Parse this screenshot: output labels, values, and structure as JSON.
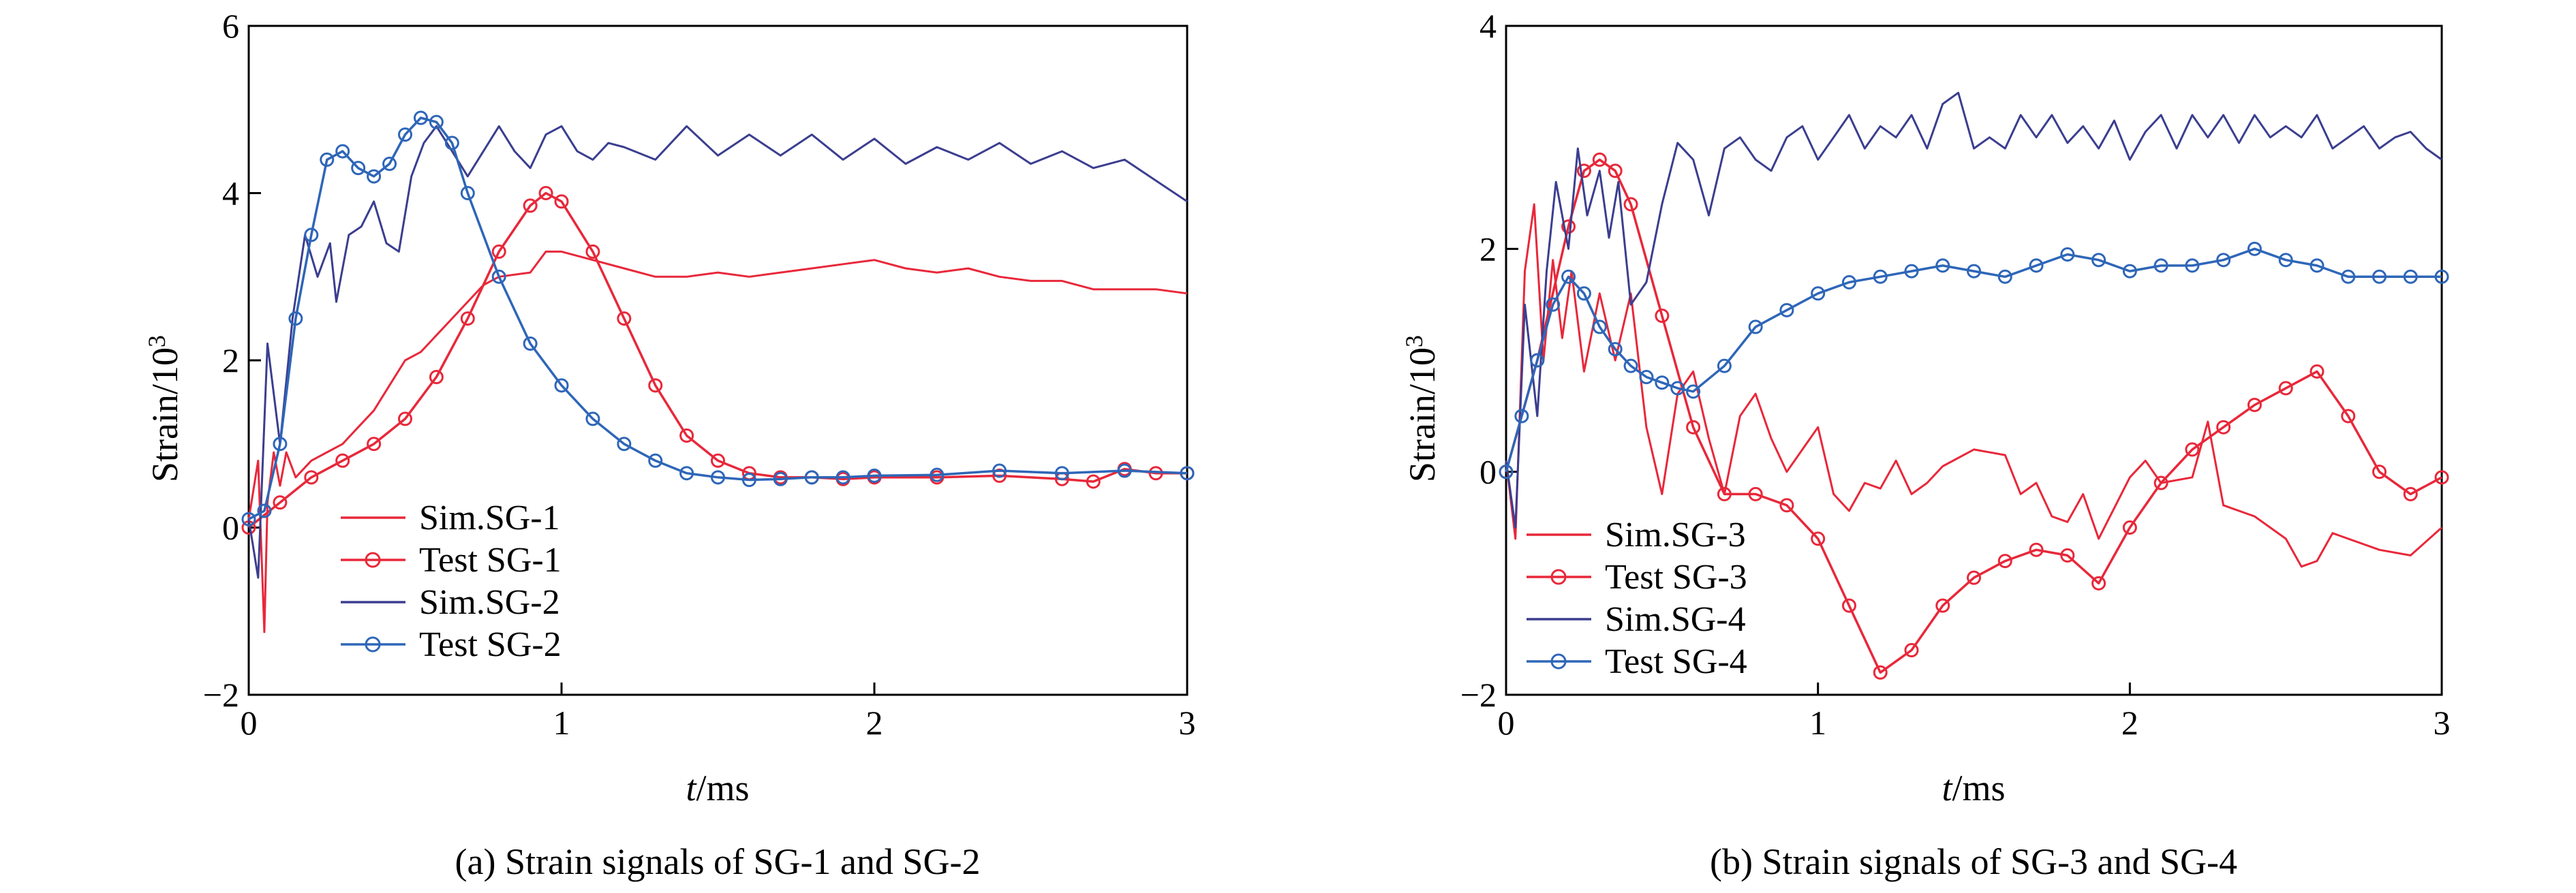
{
  "chart_data": [
    {
      "type": "line",
      "caption": "(a) Strain signals of SG-1 and SG-2",
      "xlabel_var": "t",
      "xlabel_unit": "/ms",
      "ylabel": "Strain/10",
      "ylabel_sup": "3",
      "xlim": [
        0,
        3
      ],
      "ylim": [
        -2,
        6
      ],
      "xticks": [
        "0",
        "1",
        "2",
        "3"
      ],
      "yticks": [
        "−2",
        "0",
        "2",
        "4",
        "6"
      ],
      "xtick_values": [
        0,
        1,
        2,
        3
      ],
      "ytick_values": [
        -2,
        0,
        2,
        4,
        6
      ],
      "legend_position": "lower-left",
      "series": [
        {
          "name": "Sim.SG-1",
          "color": "#e8283a",
          "marker": "none",
          "x": [
            0,
            0.03,
            0.05,
            0.06,
            0.08,
            0.1,
            0.12,
            0.15,
            0.2,
            0.25,
            0.3,
            0.35,
            0.4,
            0.45,
            0.5,
            0.55,
            0.6,
            0.65,
            0.7,
            0.75,
            0.8,
            0.9,
            0.95,
            1.0,
            1.1,
            1.2,
            1.3,
            1.4,
            1.5,
            1.6,
            1.7,
            1.8,
            1.9,
            2.0,
            2.1,
            2.2,
            2.3,
            2.4,
            2.5,
            2.6,
            2.7,
            2.8,
            2.9,
            3.0
          ],
          "y": [
            0.1,
            0.8,
            -1.25,
            0.3,
            0.9,
            0.5,
            0.9,
            0.6,
            0.8,
            0.9,
            1.0,
            1.2,
            1.4,
            1.7,
            2.0,
            2.1,
            2.3,
            2.5,
            2.7,
            2.9,
            3.0,
            3.05,
            3.3,
            3.3,
            3.2,
            3.1,
            3.0,
            3.0,
            3.05,
            3.0,
            3.05,
            3.1,
            3.15,
            3.2,
            3.1,
            3.05,
            3.1,
            3.0,
            2.95,
            2.95,
            2.85,
            2.85,
            2.85,
            2.8
          ]
        },
        {
          "name": "Test SG-1",
          "color": "#e8283a",
          "marker": "circle",
          "x": [
            0,
            0.1,
            0.2,
            0.3,
            0.4,
            0.5,
            0.6,
            0.7,
            0.8,
            0.9,
            0.95,
            1.0,
            1.1,
            1.2,
            1.3,
            1.4,
            1.5,
            1.6,
            1.7,
            1.8,
            1.9,
            2.0,
            2.2,
            2.4,
            2.6,
            2.7,
            2.8,
            2.9,
            3.0
          ],
          "y": [
            0.0,
            0.3,
            0.6,
            0.8,
            1.0,
            1.3,
            1.8,
            2.5,
            3.3,
            3.85,
            4.0,
            3.9,
            3.3,
            2.5,
            1.7,
            1.1,
            0.8,
            0.65,
            0.6,
            0.6,
            0.58,
            0.6,
            0.6,
            0.62,
            0.58,
            0.55,
            0.7,
            0.65,
            0.65
          ]
        },
        {
          "name": "Sim.SG-2",
          "color": "#3b3e8f",
          "marker": "none",
          "x": [
            0,
            0.03,
            0.06,
            0.1,
            0.14,
            0.18,
            0.22,
            0.26,
            0.28,
            0.32,
            0.36,
            0.4,
            0.44,
            0.48,
            0.52,
            0.56,
            0.6,
            0.65,
            0.7,
            0.75,
            0.8,
            0.85,
            0.9,
            0.95,
            1.0,
            1.05,
            1.1,
            1.15,
            1.2,
            1.3,
            1.4,
            1.5,
            1.6,
            1.7,
            1.8,
            1.9,
            2.0,
            2.1,
            2.2,
            2.3,
            2.4,
            2.5,
            2.6,
            2.7,
            2.8,
            2.9,
            3.0
          ],
          "y": [
            0.1,
            -0.6,
            2.2,
            1.0,
            2.5,
            3.5,
            3.0,
            3.4,
            2.7,
            3.5,
            3.6,
            3.9,
            3.4,
            3.3,
            4.2,
            4.6,
            4.8,
            4.5,
            4.2,
            4.5,
            4.8,
            4.5,
            4.3,
            4.7,
            4.8,
            4.5,
            4.4,
            4.6,
            4.55,
            4.4,
            4.8,
            4.45,
            4.7,
            4.45,
            4.7,
            4.4,
            4.65,
            4.35,
            4.55,
            4.4,
            4.6,
            4.35,
            4.5,
            4.3,
            4.4,
            4.15,
            3.9
          ]
        },
        {
          "name": "Test SG-2",
          "color": "#2e66b8",
          "marker": "circle",
          "x": [
            0,
            0.05,
            0.1,
            0.15,
            0.2,
            0.25,
            0.3,
            0.35,
            0.4,
            0.45,
            0.5,
            0.55,
            0.6,
            0.65,
            0.7,
            0.8,
            0.9,
            1.0,
            1.1,
            1.2,
            1.3,
            1.4,
            1.5,
            1.6,
            1.7,
            1.8,
            1.9,
            2.0,
            2.2,
            2.4,
            2.6,
            2.8,
            3.0
          ],
          "y": [
            0.1,
            0.2,
            1.0,
            2.5,
            3.5,
            4.4,
            4.5,
            4.3,
            4.2,
            4.35,
            4.7,
            4.9,
            4.85,
            4.6,
            4.0,
            3.0,
            2.2,
            1.7,
            1.3,
            1.0,
            0.8,
            0.65,
            0.6,
            0.57,
            0.58,
            0.6,
            0.6,
            0.62,
            0.63,
            0.68,
            0.65,
            0.68,
            0.65
          ]
        }
      ]
    },
    {
      "type": "line",
      "caption": "(b) Strain signals of SG-3 and SG-4",
      "xlabel_var": "t",
      "xlabel_unit": "/ms",
      "ylabel": "Strain/10",
      "ylabel_sup": "3",
      "xlim": [
        0,
        3
      ],
      "ylim": [
        -2,
        4
      ],
      "xticks": [
        "0",
        "1",
        "2",
        "3"
      ],
      "yticks": [
        "−2",
        "0",
        "2",
        "4"
      ],
      "xtick_values": [
        0,
        1,
        2,
        3
      ],
      "ytick_values": [
        -2,
        0,
        2,
        4
      ],
      "legend_position": "lower-left",
      "series": [
        {
          "name": "Sim.SG-3",
          "color": "#e8283a",
          "marker": "none",
          "x": [
            0,
            0.03,
            0.06,
            0.09,
            0.12,
            0.15,
            0.18,
            0.21,
            0.25,
            0.3,
            0.35,
            0.4,
            0.45,
            0.5,
            0.55,
            0.6,
            0.65,
            0.7,
            0.75,
            0.8,
            0.85,
            0.9,
            0.95,
            1.0,
            1.05,
            1.1,
            1.15,
            1.2,
            1.25,
            1.3,
            1.35,
            1.4,
            1.5,
            1.6,
            1.65,
            1.7,
            1.75,
            1.8,
            1.85,
            1.9,
            2.0,
            2.05,
            2.1,
            2.2,
            2.25,
            2.3,
            2.4,
            2.5,
            2.55,
            2.6,
            2.65,
            2.7,
            2.8,
            2.9,
            3.0
          ],
          "y": [
            0.1,
            -0.6,
            1.8,
            2.4,
            1.0,
            1.9,
            1.2,
            1.8,
            0.9,
            1.6,
            1.0,
            1.6,
            0.4,
            -0.2,
            0.7,
            0.9,
            0.3,
            -0.2,
            0.5,
            0.7,
            0.3,
            0.0,
            0.2,
            0.4,
            -0.2,
            -0.35,
            -0.1,
            -0.15,
            0.1,
            -0.2,
            -0.1,
            0.05,
            0.2,
            0.15,
            -0.2,
            -0.1,
            -0.4,
            -0.45,
            -0.2,
            -0.6,
            -0.05,
            0.1,
            -0.1,
            -0.05,
            0.45,
            -0.3,
            -0.4,
            -0.6,
            -0.85,
            -0.8,
            -0.55,
            -0.6,
            -0.7,
            -0.75,
            -0.5
          ]
        },
        {
          "name": "Test SG-3",
          "color": "#e8283a",
          "marker": "circle",
          "x": [
            0,
            0.1,
            0.2,
            0.25,
            0.3,
            0.35,
            0.4,
            0.5,
            0.6,
            0.7,
            0.8,
            0.9,
            1.0,
            1.1,
            1.2,
            1.3,
            1.4,
            1.5,
            1.6,
            1.7,
            1.8,
            1.9,
            2.0,
            2.1,
            2.2,
            2.3,
            2.4,
            2.5,
            2.6,
            2.7,
            2.8,
            2.9,
            3.0
          ],
          "y": [
            0.0,
            1.0,
            2.2,
            2.7,
            2.8,
            2.7,
            2.4,
            1.4,
            0.4,
            -0.2,
            -0.2,
            -0.3,
            -0.6,
            -1.2,
            -1.8,
            -1.6,
            -1.2,
            -0.95,
            -0.8,
            -0.7,
            -0.75,
            -1.0,
            -0.5,
            -0.1,
            0.2,
            0.4,
            0.6,
            0.75,
            0.9,
            0.5,
            0.0,
            -0.2,
            -0.05
          ]
        },
        {
          "name": "Sim.SG-4",
          "color": "#3b3e8f",
          "marker": "none",
          "x": [
            0,
            0.03,
            0.06,
            0.1,
            0.13,
            0.16,
            0.2,
            0.23,
            0.26,
            0.3,
            0.33,
            0.36,
            0.4,
            0.45,
            0.5,
            0.55,
            0.6,
            0.65,
            0.7,
            0.75,
            0.8,
            0.85,
            0.9,
            0.95,
            1.0,
            1.05,
            1.1,
            1.15,
            1.2,
            1.25,
            1.3,
            1.35,
            1.4,
            1.45,
            1.5,
            1.55,
            1.6,
            1.65,
            1.7,
            1.75,
            1.8,
            1.85,
            1.9,
            1.95,
            2.0,
            2.05,
            2.1,
            2.15,
            2.2,
            2.25,
            2.3,
            2.35,
            2.4,
            2.45,
            2.5,
            2.55,
            2.6,
            2.65,
            2.7,
            2.75,
            2.8,
            2.85,
            2.9,
            2.95,
            3.0
          ],
          "y": [
            0.1,
            -0.5,
            1.5,
            0.5,
            1.8,
            2.6,
            2.0,
            2.9,
            2.3,
            2.7,
            2.1,
            2.6,
            1.5,
            1.7,
            2.4,
            2.95,
            2.8,
            2.3,
            2.9,
            3.0,
            2.8,
            2.7,
            3.0,
            3.1,
            2.8,
            3.0,
            3.2,
            2.9,
            3.1,
            3.0,
            3.2,
            2.9,
            3.3,
            3.4,
            2.9,
            3.0,
            2.9,
            3.2,
            3.0,
            3.2,
            2.95,
            3.1,
            2.9,
            3.15,
            2.8,
            3.05,
            3.2,
            2.9,
            3.2,
            3.0,
            3.2,
            2.95,
            3.2,
            3.0,
            3.1,
            3.0,
            3.2,
            2.9,
            3.0,
            3.1,
            2.9,
            3.0,
            3.05,
            2.9,
            2.8
          ]
        },
        {
          "name": "Test SG-4",
          "color": "#2e66b8",
          "marker": "circle",
          "x": [
            0,
            0.05,
            0.1,
            0.15,
            0.2,
            0.25,
            0.3,
            0.35,
            0.4,
            0.45,
            0.5,
            0.55,
            0.6,
            0.7,
            0.8,
            0.9,
            1.0,
            1.1,
            1.2,
            1.3,
            1.4,
            1.5,
            1.6,
            1.7,
            1.8,
            1.9,
            2.0,
            2.1,
            2.2,
            2.3,
            2.4,
            2.5,
            2.6,
            2.7,
            2.8,
            2.9,
            3.0
          ],
          "y": [
            0.0,
            0.5,
            1.0,
            1.5,
            1.75,
            1.6,
            1.3,
            1.1,
            0.95,
            0.85,
            0.8,
            0.75,
            0.72,
            0.95,
            1.3,
            1.45,
            1.6,
            1.7,
            1.75,
            1.8,
            1.85,
            1.8,
            1.75,
            1.85,
            1.95,
            1.9,
            1.8,
            1.85,
            1.85,
            1.9,
            2.0,
            1.9,
            1.85,
            1.75,
            1.75,
            1.75,
            1.75
          ]
        }
      ]
    }
  ]
}
